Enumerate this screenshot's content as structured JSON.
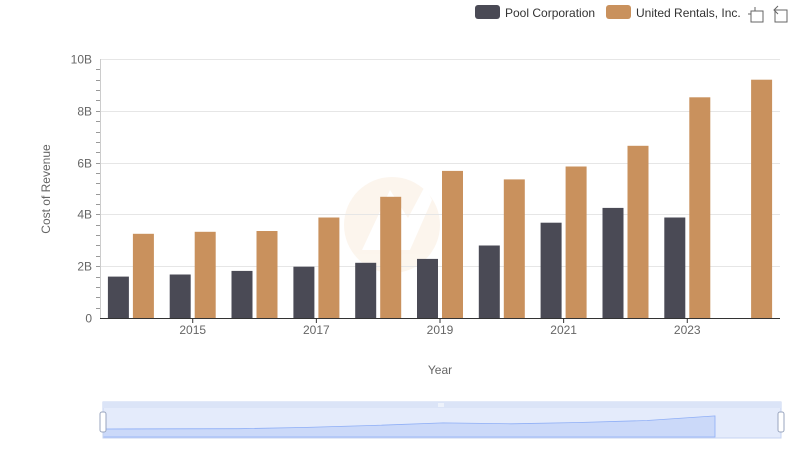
{
  "chart_data": {
    "type": "bar",
    "title": "",
    "xlabel": "Year",
    "ylabel": "Cost of Revenue",
    "ylim": [
      0,
      10000000000
    ],
    "yticks": [
      {
        "value": 0,
        "label": "0"
      },
      {
        "value": 2000000000,
        "label": "2B"
      },
      {
        "value": 4000000000,
        "label": "4B"
      },
      {
        "value": 6000000000,
        "label": "6B"
      },
      {
        "value": 8000000000,
        "label": "8B"
      },
      {
        "value": 10000000000,
        "label": "10B"
      }
    ],
    "categories": [
      "2014",
      "2015",
      "2016",
      "2017",
      "2018",
      "2019",
      "2020",
      "2021",
      "2022",
      "2023",
      "2024"
    ],
    "xtick_labels": [
      "2015",
      "2017",
      "2019",
      "2021",
      "2023"
    ],
    "grid": true,
    "legend_position": "top-right",
    "series": [
      {
        "name": "Pool Corporation",
        "color": "#4a4a55",
        "values": [
          1600000000,
          1680000000,
          1820000000,
          1980000000,
          2130000000,
          2280000000,
          2800000000,
          3680000000,
          4250000000,
          3880000000,
          null
        ]
      },
      {
        "name": "United Rentals, Inc.",
        "color": "#c9915d",
        "values": [
          3250000000,
          3330000000,
          3360000000,
          3880000000,
          4680000000,
          5680000000,
          5350000000,
          5850000000,
          6650000000,
          8520000000,
          9200000000
        ]
      }
    ]
  },
  "toolbar": {
    "zoom_icon": "zoom-select-icon",
    "reset_icon": "zoom-reset-icon"
  },
  "slider": {
    "fill_color": "#d6e2fb",
    "border_color": "#c6d3f0"
  }
}
